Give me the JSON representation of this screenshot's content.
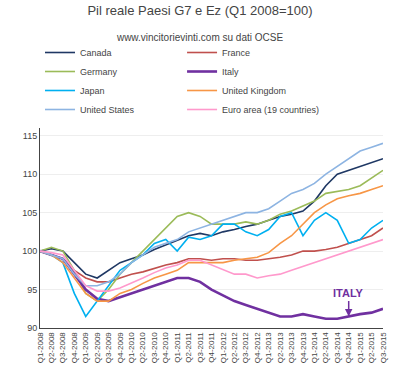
{
  "chart_data": {
    "type": "line",
    "title": "Pil reale Paesi G7 e Ez (Q1 2008=100)",
    "subtitle": "www.vincitorievinti.com su dati OCSE",
    "categories": [
      "Q1-2008",
      "Q2-2008",
      "Q3-2008",
      "Q4-2008",
      "Q1-2009",
      "Q2-2009",
      "Q3-2009",
      "Q4-2009",
      "Q1-2010",
      "Q2-2010",
      "Q3-2010",
      "Q4-2010",
      "Q1-2011",
      "Q2-2011",
      "Q3-2011",
      "Q4-2011",
      "Q1-2012",
      "Q2-2012",
      "Q3-2012",
      "Q4-2012",
      "Q1-2013",
      "Q2-2013",
      "Q3-2013",
      "Q4-2013",
      "Q1-2014",
      "Q2-2014",
      "Q3-2014",
      "Q4-2014",
      "Q1-2015",
      "Q2-2015",
      "Q3-2015"
    ],
    "series": [
      {
        "name": "Canada",
        "color": "#1F3864",
        "values": [
          100,
          100.3,
          100.0,
          98.5,
          97.0,
          96.5,
          97.5,
          98.5,
          99.0,
          99.5,
          100.2,
          100.8,
          101.5,
          102.0,
          102.3,
          102.0,
          102.5,
          102.8,
          103.2,
          103.5,
          104.0,
          104.5,
          104.8,
          105.2,
          106.5,
          108.5,
          110.0,
          110.5,
          111.0,
          111.5,
          112.0
        ]
      },
      {
        "name": "France",
        "color": "#C0504D",
        "values": [
          100,
          99.5,
          99.0,
          97.5,
          96.5,
          96.0,
          96.0,
          96.5,
          97.0,
          97.3,
          97.8,
          98.2,
          98.5,
          99.0,
          99.0,
          98.8,
          99.0,
          99.0,
          98.8,
          98.8,
          99.0,
          99.2,
          99.5,
          100.0,
          100.0,
          100.2,
          100.5,
          101.0,
          101.5,
          102.0,
          103.0
        ]
      },
      {
        "name": "Germany",
        "color": "#9BBB59",
        "values": [
          100,
          100.5,
          100.0,
          97.5,
          94.5,
          93.5,
          95.0,
          97.0,
          98.5,
          100.0,
          101.5,
          103.0,
          104.5,
          105.0,
          104.5,
          103.5,
          103.5,
          103.5,
          103.8,
          103.5,
          104.0,
          104.8,
          105.2,
          105.8,
          106.5,
          107.5,
          107.8,
          108.0,
          108.5,
          109.5,
          110.5
        ]
      },
      {
        "name": "Italy",
        "color": "#7030A0",
        "values": [
          100,
          99.5,
          99.0,
          97.0,
          95.0,
          93.8,
          93.5,
          94.0,
          94.5,
          95.0,
          95.5,
          96.0,
          96.5,
          96.5,
          96.0,
          95.0,
          94.2,
          93.5,
          93.0,
          92.5,
          92.0,
          91.5,
          91.5,
          91.8,
          91.5,
          91.2,
          91.2,
          91.5,
          91.8,
          92.0,
          92.5
        ]
      },
      {
        "name": "Japan",
        "color": "#00B0F0",
        "values": [
          100,
          99.5,
          98.5,
          94.5,
          91.5,
          93.5,
          95.5,
          97.5,
          98.5,
          99.5,
          101.0,
          101.5,
          100.0,
          101.8,
          101.5,
          102.0,
          103.5,
          103.5,
          102.5,
          102.0,
          102.8,
          104.5,
          105.0,
          102.0,
          104.0,
          105.0,
          104.0,
          101.0,
          101.5,
          103.0,
          104.0
        ]
      },
      {
        "name": "United Kingdom",
        "color": "#F79646",
        "values": [
          100,
          99.5,
          98.5,
          96.5,
          94.5,
          93.5,
          93.5,
          94.5,
          95.0,
          95.8,
          96.5,
          97.0,
          97.5,
          98.5,
          98.5,
          98.5,
          98.5,
          98.8,
          99.0,
          99.2,
          99.8,
          101.0,
          102.0,
          103.5,
          105.0,
          106.0,
          106.8,
          107.2,
          107.5,
          108.0,
          108.5
        ]
      },
      {
        "name": "United States",
        "color": "#8DB4E2",
        "values": [
          100,
          99.5,
          99.0,
          97.0,
          95.5,
          95.5,
          96.0,
          97.0,
          98.5,
          99.5,
          100.5,
          101.0,
          101.5,
          102.5,
          103.0,
          103.5,
          104.0,
          104.5,
          105.0,
          105.0,
          105.5,
          106.5,
          107.5,
          108.0,
          108.8,
          110.0,
          111.0,
          112.0,
          113.0,
          113.5,
          114.0
        ]
      },
      {
        "name": "Euro area (19 countries)",
        "color": "#FF99CC",
        "values": [
          100,
          99.8,
          99.5,
          97.5,
          95.5,
          94.8,
          94.8,
          95.2,
          95.8,
          96.5,
          97.2,
          97.8,
          98.2,
          98.8,
          98.8,
          98.2,
          97.5,
          97.0,
          97.0,
          96.5,
          96.8,
          97.0,
          97.5,
          98.0,
          98.5,
          99.0,
          99.5,
          100.0,
          100.5,
          101.0,
          101.5
        ]
      }
    ],
    "ylim": [
      90,
      116
    ],
    "yticks": [
      90,
      95,
      100,
      105,
      110,
      115
    ],
    "grid": true,
    "legend": "upper left",
    "annotations": [
      {
        "text": "ITALY",
        "x": "Q4-2014",
        "y": 91.5,
        "y_text": 93.5,
        "color": "#7030A0"
      }
    ]
  }
}
